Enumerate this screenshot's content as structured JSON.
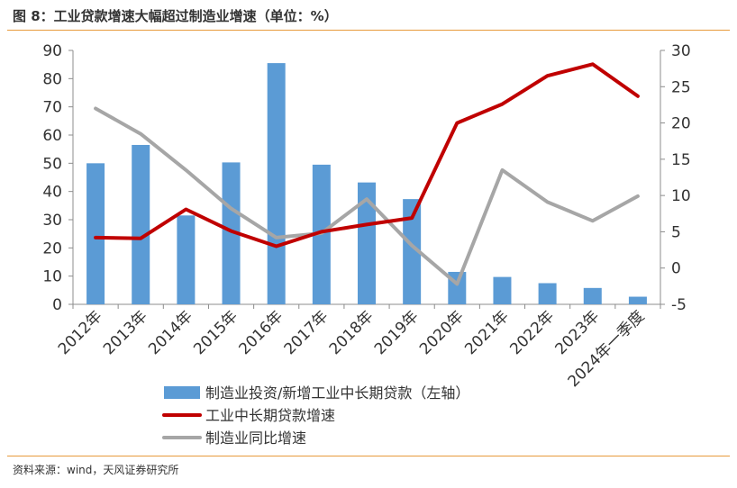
{
  "header": {
    "title": "图 8：工业贷款增速大幅超过制造业增速（单位：%）"
  },
  "footer": {
    "source": "资料来源：wind，天风证券研究所"
  },
  "chart_data": {
    "type": "bar+line",
    "categories": [
      "2012年",
      "2013年",
      "2014年",
      "2015年",
      "2016年",
      "2017年",
      "2018年",
      "2019年",
      "2020年",
      "2021年",
      "2022年",
      "2023年",
      "2024年一季度"
    ],
    "left_axis": {
      "ylim": [
        0,
        90
      ],
      "ticks": [
        0,
        10,
        20,
        30,
        40,
        50,
        60,
        70,
        80,
        90
      ]
    },
    "right_axis": {
      "ylim": [
        -5,
        30
      ],
      "ticks": [
        -5,
        0,
        5,
        10,
        15,
        20,
        25,
        30
      ]
    },
    "series": [
      {
        "name": "制造业投资/新增工业中长期贷款（左轴）",
        "type": "bar",
        "axis": "left",
        "color": "#5b9bd5",
        "values": [
          50,
          56.5,
          31.5,
          50.3,
          85.5,
          49.5,
          43.2,
          37.3,
          11.5,
          9.7,
          7.5,
          5.8,
          2.7
        ]
      },
      {
        "name": "工业中长期贷款增速",
        "type": "line",
        "axis": "right",
        "color": "#c00000",
        "values": [
          4.2,
          4.1,
          8.1,
          5.1,
          3.0,
          5.0,
          6.0,
          6.9,
          20.0,
          22.6,
          26.5,
          28.1,
          23.7
        ]
      },
      {
        "name": "制造业同比增速",
        "type": "line",
        "axis": "right",
        "color": "#a6a6a6",
        "values": [
          22.0,
          18.5,
          13.5,
          8.2,
          4.2,
          4.8,
          9.5,
          3.1,
          -2.2,
          13.5,
          9.1,
          6.5,
          9.9
        ]
      }
    ],
    "legend_position": "bottom"
  }
}
